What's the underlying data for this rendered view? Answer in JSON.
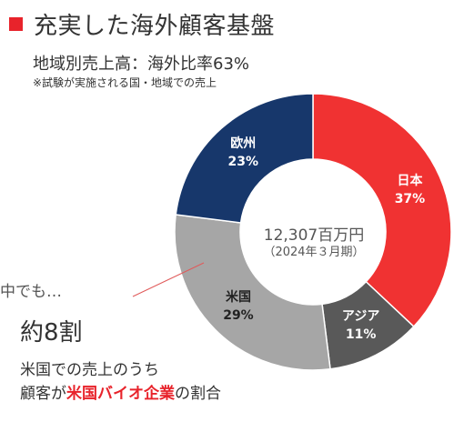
{
  "title": "充実した海外顧客基盤",
  "subtitle": "地域別売上高：海外比率63%",
  "note": "※試験が実施される国・地域での売上",
  "center": {
    "line1": "12,307百万円",
    "line2": "（2024年３月期）"
  },
  "callout": {
    "lead": "中でも…",
    "headline": "約8割",
    "line1": "米国での売上のうち",
    "line2_prefix": "顧客が",
    "line2_emphasis": "米国バイオ企業",
    "line2_suffix": "の割合"
  },
  "colors": {
    "accent": "#e8232b"
  },
  "chart_data": {
    "type": "pie",
    "variant": "donut",
    "unit": "%",
    "total_label": "12,307百万円",
    "segments": [
      {
        "name": "日本",
        "value": 37,
        "label": "37%",
        "color": "#f03232",
        "label_color": "#ffffff"
      },
      {
        "name": "アジア",
        "value": 11,
        "label": "11%",
        "color": "#595959",
        "label_color": "#ffffff"
      },
      {
        "name": "米国",
        "value": 29,
        "label": "29%",
        "color": "#a6a6a6",
        "label_color": "#222222"
      },
      {
        "name": "欧州",
        "value": 23,
        "label": "23%",
        "color": "#17376b",
        "label_color": "#ffffff"
      }
    ]
  }
}
